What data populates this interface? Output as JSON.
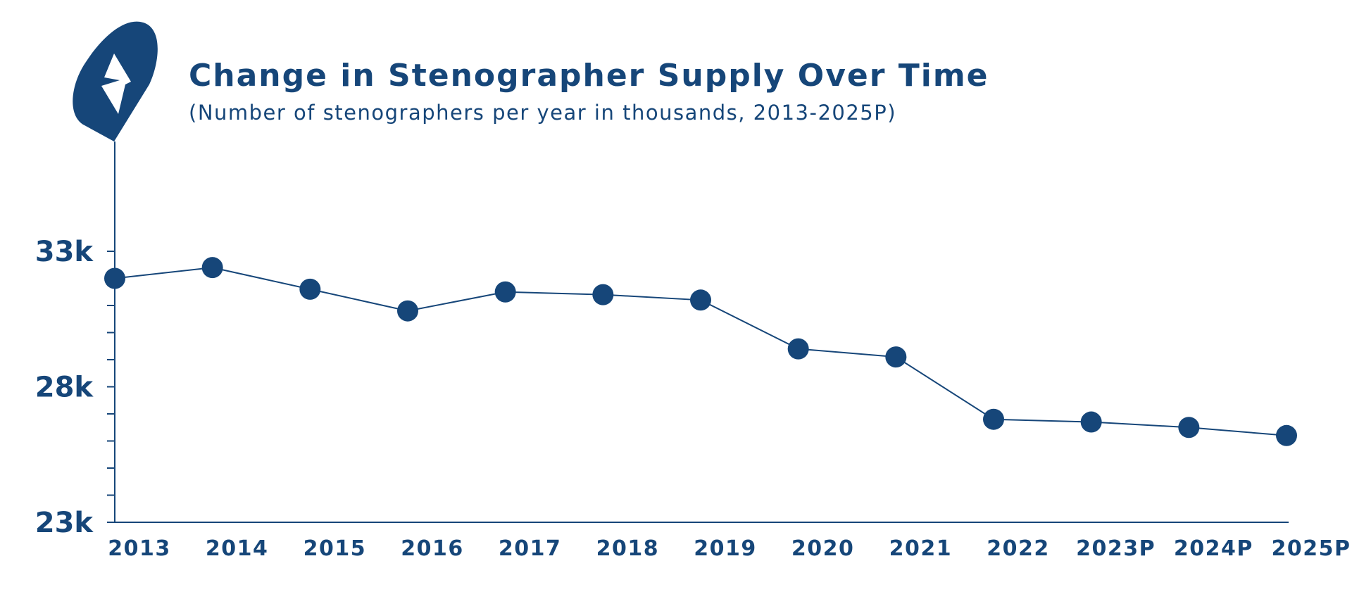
{
  "colors": {
    "primary": "#164679",
    "background": "#ffffff"
  },
  "icon": "lightning-bolt-pin-icon",
  "chart_data": {
    "type": "line",
    "title": "Change in Stenographer Supply Over Time",
    "subtitle": "(Number of stenographers per year in thousands, 2013-2025P)",
    "categories": [
      "2013",
      "2014",
      "2015",
      "2016",
      "2017",
      "2018",
      "2019",
      "2020",
      "2021",
      "2022",
      "2023P",
      "2024P",
      "2025P"
    ],
    "values": [
      32.0,
      32.4,
      31.6,
      30.8,
      31.5,
      31.4,
      31.2,
      29.4,
      29.1,
      26.8,
      26.7,
      26.5,
      26.2
    ],
    "ylim": [
      23,
      33
    ],
    "ytick_labels": [
      "23k",
      "28k",
      "33k"
    ],
    "ytick_values": [
      23,
      28,
      33
    ],
    "minor_tick_step": 1,
    "grid": false,
    "legend": "none"
  }
}
